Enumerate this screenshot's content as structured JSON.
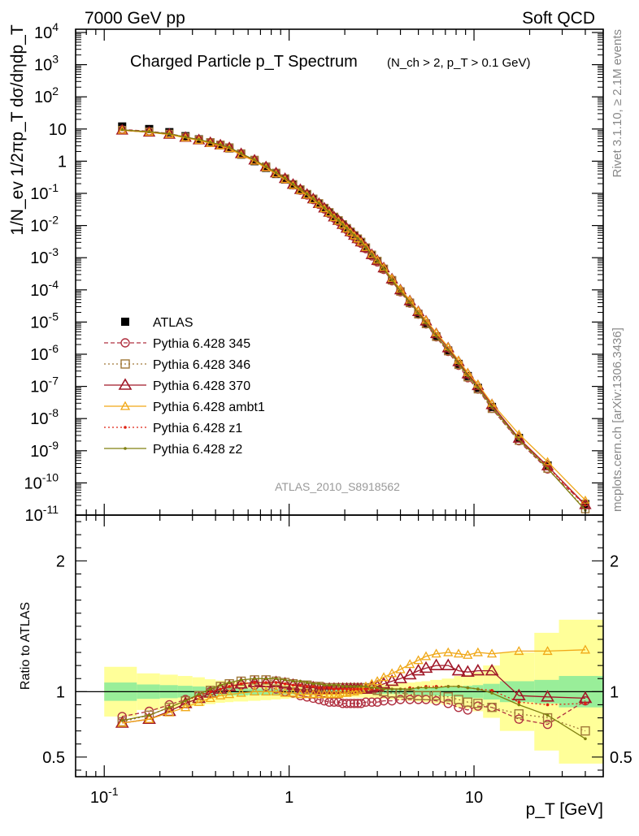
{
  "header": {
    "left": "7000 GeV pp",
    "right": "Soft QCD"
  },
  "side_labels": {
    "rivet": "Rivet 3.1.10, ≥ 2.1M events",
    "mcplots": "mcplots.cern.ch [arXiv:1306.3436]"
  },
  "chart_data": [
    {
      "type": "scatter",
      "title": "Charged Particle p_T Spectrum",
      "subtitle": "(N_ch > 2, p_T > 0.1 GeV)",
      "ylabel": "1/N_ev 1/2πp_T dσ/dηdp_T",
      "xlabel": "",
      "analysis_tag": "ATLAS_2010_S8918562",
      "xscale": "log",
      "yscale": "log",
      "xlim": [
        0.07,
        50
      ],
      "ylim": [
        1e-11,
        10000
      ],
      "y_tick_labels": [
        "10^-11",
        "10^-10",
        "10^-9",
        "10^-8",
        "10^-7",
        "10^-6",
        "10^-5",
        "10^-4",
        "10^-3",
        "10^-2",
        "10^-1",
        "1",
        "10",
        "10^2",
        "10^3",
        "10^4"
      ],
      "legend_position": "lower-left",
      "x": [
        0.125,
        0.175,
        0.225,
        0.275,
        0.325,
        0.375,
        0.425,
        0.475,
        0.55,
        0.65,
        0.75,
        0.85,
        0.95,
        1.05,
        1.15,
        1.25,
        1.35,
        1.45,
        1.55,
        1.65,
        1.75,
        1.85,
        1.95,
        2.05,
        2.15,
        2.25,
        2.35,
        2.45,
        2.6,
        2.8,
        3.0,
        3.25,
        3.6,
        4.0,
        4.5,
        5.0,
        5.5,
        6.25,
        7.25,
        8.25,
        9.25,
        10.5,
        12.5,
        17.5,
        25.0,
        40.0
      ],
      "series": [
        {
          "name": "ATLAS",
          "values": [
            12,
            10,
            8,
            6,
            4.8,
            3.8,
            3.1,
            2.5,
            1.6,
            1.0,
            0.62,
            0.4,
            0.27,
            0.18,
            0.125,
            0.09,
            0.065,
            0.047,
            0.034,
            0.025,
            0.018,
            0.014,
            0.0105,
            0.008,
            0.0062,
            0.0048,
            0.0038,
            0.003,
            0.002,
            0.0012,
            0.00078,
            0.00045,
            0.0002,
            9e-05,
            4e-05,
            1.8e-05,
            9e-06,
            3.6e-06,
            1.3e-06,
            5e-07,
            2.1e-07,
            9e-08,
            2.3e-08,
            2.5e-09,
            3.5e-10,
            2.2e-11
          ],
          "y_err": [
            0,
            0,
            0,
            0,
            0,
            0,
            0,
            0,
            0,
            0,
            0,
            0,
            0,
            0,
            0,
            0,
            0,
            0,
            0,
            0,
            0,
            0,
            0,
            0,
            0,
            0,
            0,
            0,
            0,
            0,
            0,
            0,
            0,
            0,
            0,
            0,
            0,
            0,
            0,
            0,
            0,
            0,
            0,
            0,
            0,
            0
          ]
        },
        {
          "name": "Pythia 6.428 345",
          "values": [
            0.81,
            0.85,
            0.9,
            0.94,
            0.97,
            1.0,
            1.02,
            1.04,
            1.05,
            1.05,
            1.04,
            1.02,
            1.0,
            0.99,
            0.97,
            0.96,
            0.95,
            0.94,
            0.93,
            0.92,
            0.92,
            0.92,
            0.91,
            0.91,
            0.91,
            0.91,
            0.91,
            0.91,
            0.92,
            0.92,
            0.92,
            0.93,
            0.93,
            0.94,
            0.94,
            0.94,
            0.94,
            0.93,
            0.91,
            0.88,
            0.86,
            0.89,
            0.88,
            0.79,
            0.75,
            0.93
          ]
        },
        {
          "name": "Pythia 6.428 346",
          "values": [
            0.77,
            0.82,
            0.88,
            0.93,
            0.97,
            1.01,
            1.04,
            1.06,
            1.08,
            1.09,
            1.09,
            1.08,
            1.07,
            1.06,
            1.05,
            1.05,
            1.04,
            1.04,
            1.03,
            1.03,
            1.03,
            1.03,
            1.03,
            1.03,
            1.03,
            1.03,
            1.03,
            1.03,
            1.03,
            1.02,
            1.01,
            1.0,
            0.99,
            0.99,
            0.98,
            0.97,
            0.97,
            0.97,
            0.96,
            0.94,
            0.92,
            0.91,
            0.88,
            0.83,
            0.8,
            0.7
          ]
        },
        {
          "name": "Pythia 6.428 370",
          "values": [
            0.76,
            0.79,
            0.85,
            0.91,
            0.95,
            0.99,
            1.02,
            1.04,
            1.06,
            1.07,
            1.07,
            1.07,
            1.06,
            1.05,
            1.04,
            1.03,
            1.03,
            1.02,
            1.02,
            1.02,
            1.02,
            1.02,
            1.02,
            1.02,
            1.02,
            1.02,
            1.02,
            1.02,
            1.02,
            1.03,
            1.04,
            1.06,
            1.08,
            1.1,
            1.13,
            1.16,
            1.18,
            1.2,
            1.2,
            1.16,
            1.15,
            1.16,
            1.16,
            0.97,
            0.96,
            0.95
          ]
        },
        {
          "name": "Pythia 6.428 ambt1",
          "values": [
            0.76,
            0.79,
            0.84,
            0.88,
            0.92,
            0.95,
            0.97,
            0.98,
            0.99,
            1.0,
            1.0,
            1.0,
            0.99,
            0.99,
            0.98,
            0.98,
            0.98,
            0.98,
            0.98,
            0.98,
            0.98,
            0.98,
            0.99,
            0.99,
            1.0,
            1.0,
            1.01,
            1.02,
            1.04,
            1.06,
            1.08,
            1.11,
            1.14,
            1.17,
            1.21,
            1.24,
            1.27,
            1.29,
            1.3,
            1.29,
            1.28,
            1.3,
            1.29,
            1.31,
            1.31,
            1.32
          ]
        },
        {
          "name": "Pythia 6.428 z1",
          "values": [
            0.78,
            0.82,
            0.88,
            0.93,
            0.97,
            1.0,
            1.02,
            1.04,
            1.06,
            1.07,
            1.07,
            1.07,
            1.06,
            1.05,
            1.05,
            1.04,
            1.04,
            1.03,
            1.03,
            1.03,
            1.02,
            1.02,
            1.02,
            1.02,
            1.02,
            1.02,
            1.02,
            1.02,
            1.02,
            1.02,
            1.02,
            1.02,
            1.02,
            1.02,
            1.03,
            1.03,
            1.04,
            1.04,
            1.04,
            1.04,
            1.03,
            1.02,
            1.01,
            0.92,
            0.9,
            0.91
          ]
        },
        {
          "name": "Pythia 6.428 z2",
          "values": [
            0.78,
            0.82,
            0.88,
            0.93,
            0.98,
            1.02,
            1.05,
            1.07,
            1.09,
            1.1,
            1.1,
            1.1,
            1.09,
            1.08,
            1.08,
            1.07,
            1.06,
            1.06,
            1.05,
            1.05,
            1.05,
            1.05,
            1.04,
            1.04,
            1.04,
            1.04,
            1.04,
            1.04,
            1.04,
            1.03,
            1.03,
            1.02,
            1.02,
            1.02,
            1.02,
            1.03,
            1.03,
            1.03,
            1.04,
            1.04,
            1.03,
            1.02,
            0.99,
            0.9,
            0.82,
            0.64
          ]
        }
      ]
    },
    {
      "type": "scatter",
      "title": "",
      "xlabel": "p_T [GeV]",
      "ylabel": "Ratio to ATLAS",
      "xscale": "log",
      "xlim": [
        0.07,
        50
      ],
      "ylim": [
        0.35,
        2.35
      ],
      "x_tick_labels": [
        "10^-1",
        "1",
        "10"
      ],
      "y_tick_labels": [
        "0.5",
        "1",
        "2"
      ],
      "reference_line": 1,
      "band_edges": [
        0.1,
        0.15,
        0.2,
        0.25,
        0.3,
        0.35,
        0.4,
        0.45,
        0.5,
        0.6,
        0.7,
        0.8,
        0.9,
        1.0,
        1.1,
        1.2,
        1.3,
        1.4,
        1.5,
        1.6,
        1.7,
        1.8,
        1.9,
        2.0,
        2.1,
        2.2,
        2.3,
        2.4,
        2.5,
        2.7,
        2.9,
        3.1,
        3.4,
        3.8,
        4.2,
        4.8,
        5.2,
        5.8,
        6.7,
        7.8,
        8.7,
        9.8,
        11.2,
        13.8,
        21.2,
        28.8,
        50.0
      ],
      "stat_band_halfwidth": [
        0.07,
        0.055,
        0.05,
        0.045,
        0.04,
        0.035,
        0.032,
        0.03,
        0.028,
        0.025,
        0.025,
        0.022,
        0.02,
        0.02,
        0.018,
        0.018,
        0.017,
        0.017,
        0.016,
        0.016,
        0.016,
        0.015,
        0.015,
        0.015,
        0.015,
        0.015,
        0.015,
        0.015,
        0.016,
        0.016,
        0.017,
        0.017,
        0.018,
        0.02,
        0.02,
        0.025,
        0.025,
        0.03,
        0.035,
        0.04,
        0.045,
        0.05,
        0.06,
        0.08,
        0.09,
        0.12
      ],
      "total_band_halfwidth": [
        0.19,
        0.14,
        0.13,
        0.12,
        0.11,
        0.095,
        0.085,
        0.08,
        0.075,
        0.07,
        0.065,
        0.06,
        0.055,
        0.05,
        0.05,
        0.048,
        0.046,
        0.045,
        0.044,
        0.043,
        0.042,
        0.042,
        0.042,
        0.042,
        0.043,
        0.044,
        0.045,
        0.046,
        0.048,
        0.05,
        0.052,
        0.055,
        0.06,
        0.065,
        0.07,
        0.075,
        0.08,
        0.09,
        0.1,
        0.12,
        0.13,
        0.15,
        0.2,
        0.3,
        0.45,
        0.55
      ]
    }
  ]
}
